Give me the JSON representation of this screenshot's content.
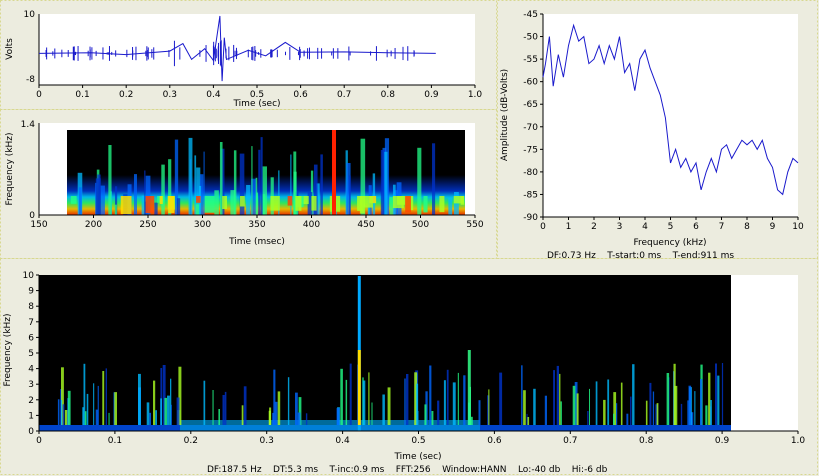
{
  "waveform": {
    "ylabel": "Volts",
    "xlabel": "Time (sec)",
    "y_ticks": [
      "10",
      "-8"
    ],
    "x_ticks": [
      "0",
      "0.1",
      "0.2",
      "0.3",
      "0.4",
      "0.5",
      "0.6",
      "0.7",
      "0.8",
      "0.9",
      "1.0"
    ],
    "line_color": "#1a1acc"
  },
  "zoom_spectrogram": {
    "ylabel": "Frequency (kHz)",
    "xlabel": "Time (msec)",
    "y_ticks": [
      "1.4",
      "0"
    ],
    "x_ticks": [
      "150",
      "200",
      "250",
      "300",
      "350",
      "400",
      "450",
      "500",
      "550"
    ]
  },
  "spectrum": {
    "ylabel": "Amplitude (dB-Volts)",
    "xlabel": "Frequency (kHz)",
    "y_ticks": [
      "-45",
      "-50",
      "-55",
      "-60",
      "-65",
      "-70",
      "-75",
      "-80",
      "-85",
      "-90"
    ],
    "x_ticks": [
      "0",
      "1",
      "2",
      "3",
      "4",
      "5",
      "6",
      "7",
      "8",
      "9",
      "10"
    ],
    "info": "DF:0.73 Hz    T-start:0 ms    T-end:911 ms"
  },
  "main_spectrogram": {
    "ylabel": "Frequency (kHz)",
    "xlabel": "Time (sec)",
    "y_ticks": [
      "10",
      "9",
      "8",
      "7",
      "6",
      "5",
      "4",
      "3",
      "2",
      "1",
      "0"
    ],
    "x_ticks": [
      "0",
      "0.1",
      "0.2",
      "0.3",
      "0.4",
      "0.5",
      "0.6",
      "0.7",
      "0.8",
      "0.9",
      "1.0"
    ],
    "info": "DF:187.5 Hz    DT:5.3 ms    T-inc:0.9 ms    FFT:256    Window:HANN    Lo:-40 db    Hi:-6 db"
  },
  "chart_data": [
    {
      "type": "line",
      "xlabel": "Time (sec)",
      "ylabel": "Volts",
      "xlim": [
        0,
        1.0
      ],
      "ylim": [
        -8,
        10
      ],
      "x": [
        0,
        0.12,
        0.2,
        0.3,
        0.33,
        0.35,
        0.38,
        0.4,
        0.415,
        0.42,
        0.425,
        0.43,
        0.48,
        0.52,
        0.565,
        0.6,
        0.7,
        0.8,
        0.91
      ],
      "values": [
        0,
        0.2,
        -0.3,
        0.6,
        2.5,
        -1.5,
        1.2,
        -1.8,
        9.5,
        -7,
        4,
        -1.5,
        0.8,
        -0.6,
        2.8,
        0.3,
        0.4,
        0.2,
        0
      ]
    },
    {
      "type": "heatmap",
      "xlabel": "Time (msec)",
      "ylabel": "Frequency (kHz)",
      "xlim": [
        150,
        550
      ],
      "ylim": [
        0,
        1.4
      ]
    },
    {
      "type": "line",
      "xlabel": "Frequency (kHz)",
      "ylabel": "Amplitude (dB-Volts)",
      "xlim": [
        0,
        10
      ],
      "ylim": [
        -90,
        -45
      ],
      "grid": false,
      "x": [
        0,
        0.1,
        0.25,
        0.4,
        0.6,
        0.8,
        1.0,
        1.2,
        1.4,
        1.6,
        1.8,
        2.0,
        2.2,
        2.4,
        2.6,
        2.8,
        3.0,
        3.2,
        3.4,
        3.6,
        3.8,
        4.0,
        4.2,
        4.4,
        4.6,
        4.8,
        5.0,
        5.2,
        5.4,
        5.6,
        5.8,
        6.0,
        6.2,
        6.4,
        6.6,
        6.8,
        7.0,
        7.2,
        7.4,
        7.6,
        7.8,
        8.0,
        8.2,
        8.4,
        8.6,
        8.8,
        9.0,
        9.2,
        9.4,
        9.6,
        9.8,
        10.0
      ],
      "values": [
        -59,
        -56,
        -50,
        -61,
        -54,
        -59,
        -52,
        -47.5,
        -51,
        -50,
        -56,
        -55,
        -52,
        -56,
        -52,
        -55,
        -50,
        -58,
        -56,
        -62,
        -55,
        -53,
        -57,
        -60,
        -63,
        -68,
        -78,
        -75,
        -79,
        -77,
        -80,
        -78,
        -84,
        -80,
        -77,
        -80,
        -75,
        -74,
        -77,
        -75,
        -73,
        -74,
        -73,
        -75,
        -73,
        -77,
        -79,
        -84,
        -85,
        -80,
        -77,
        -78
      ]
    },
    {
      "type": "heatmap",
      "xlabel": "Time (sec)",
      "ylabel": "Frequency (kHz)",
      "xlim": [
        0,
        1.0
      ],
      "ylim": [
        0,
        10
      ]
    }
  ]
}
